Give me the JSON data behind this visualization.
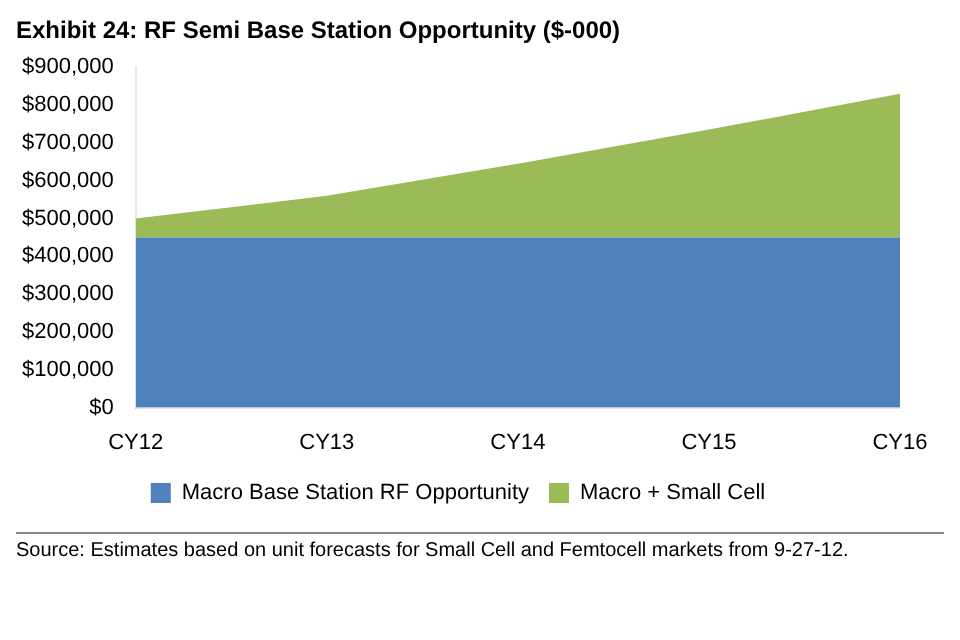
{
  "chart_data": {
    "type": "area",
    "title": "Exhibit 24: RF Semi Base Station Opportunity ($-000)",
    "categories": [
      "CY12",
      "CY13",
      "CY14",
      "CY15",
      "CY16"
    ],
    "stacked": true,
    "series": [
      {
        "name": "Macro Base Station RF Opportunity",
        "color": "#4f81bd",
        "values": [
          450000,
          450000,
          450000,
          450000,
          450000
        ]
      },
      {
        "name": "Macro + Small Cell",
        "color": "#9bbb59",
        "values": [
          50000,
          110000,
          195000,
          285000,
          380000
        ]
      }
    ],
    "ylim": [
      0,
      900000
    ],
    "yticks": [
      {
        "value": 0,
        "label": "$0"
      },
      {
        "value": 100000,
        "label": "$100,000"
      },
      {
        "value": 200000,
        "label": "$200,000"
      },
      {
        "value": 300000,
        "label": "$300,000"
      },
      {
        "value": 400000,
        "label": "$400,000"
      },
      {
        "value": 500000,
        "label": "$500,000"
      },
      {
        "value": 600000,
        "label": "$600,000"
      },
      {
        "value": 700000,
        "label": "$700,000"
      },
      {
        "value": 800000,
        "label": "$800,000"
      },
      {
        "value": 900000,
        "label": "$900,000"
      }
    ],
    "grid": false,
    "legend": "bottom",
    "annotations": [
      "Source: Estimates based on unit forecasts for Small Cell and Femtocell markets from 9-27-12."
    ]
  }
}
